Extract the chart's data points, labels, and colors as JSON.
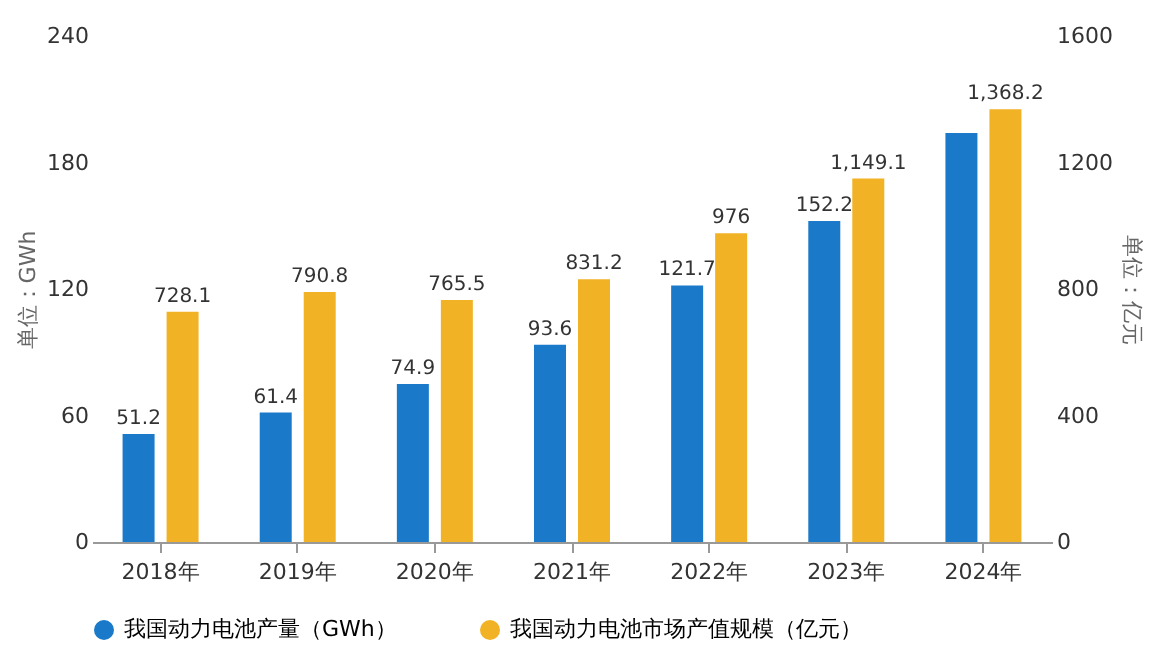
{
  "chart_data": {
    "type": "bar",
    "categories": [
      "2018年",
      "2019年",
      "2020年",
      "2021年",
      "2022年",
      "2023年",
      "2024年"
    ],
    "ylabel": "单位：GWh",
    "y2label": "单位：亿元",
    "ylim": [
      0,
      240
    ],
    "yticks": [
      0,
      60,
      120,
      180,
      240
    ],
    "y2lim": [
      0,
      1600
    ],
    "y2ticks": [
      0,
      400,
      800,
      1200,
      1600
    ],
    "grid": false,
    "legend": "bottom",
    "data_labels": true,
    "series": [
      {
        "name": "我国动力电池产量（GWh）",
        "color": "#1a7ac9",
        "values": [
          51.2,
          61.4,
          74.9,
          93.6,
          121.7,
          152.2,
          194
        ],
        "value_labels": [
          "51.2",
          "61.4",
          "74.9",
          "93.6",
          "121.7",
          "152.2",
          null
        ]
      },
      {
        "name": "我国动力电池市场产值规模（亿元）",
        "color": "#f2b225",
        "axis": "y2",
        "values": [
          728.1,
          790.8,
          765.5,
          831.2,
          976,
          1149.1,
          1368.2
        ],
        "value_labels": [
          "728.1",
          "790.8",
          "765.5",
          "831.2",
          "976",
          "1,149.1",
          "1,368.2"
        ]
      }
    ]
  }
}
